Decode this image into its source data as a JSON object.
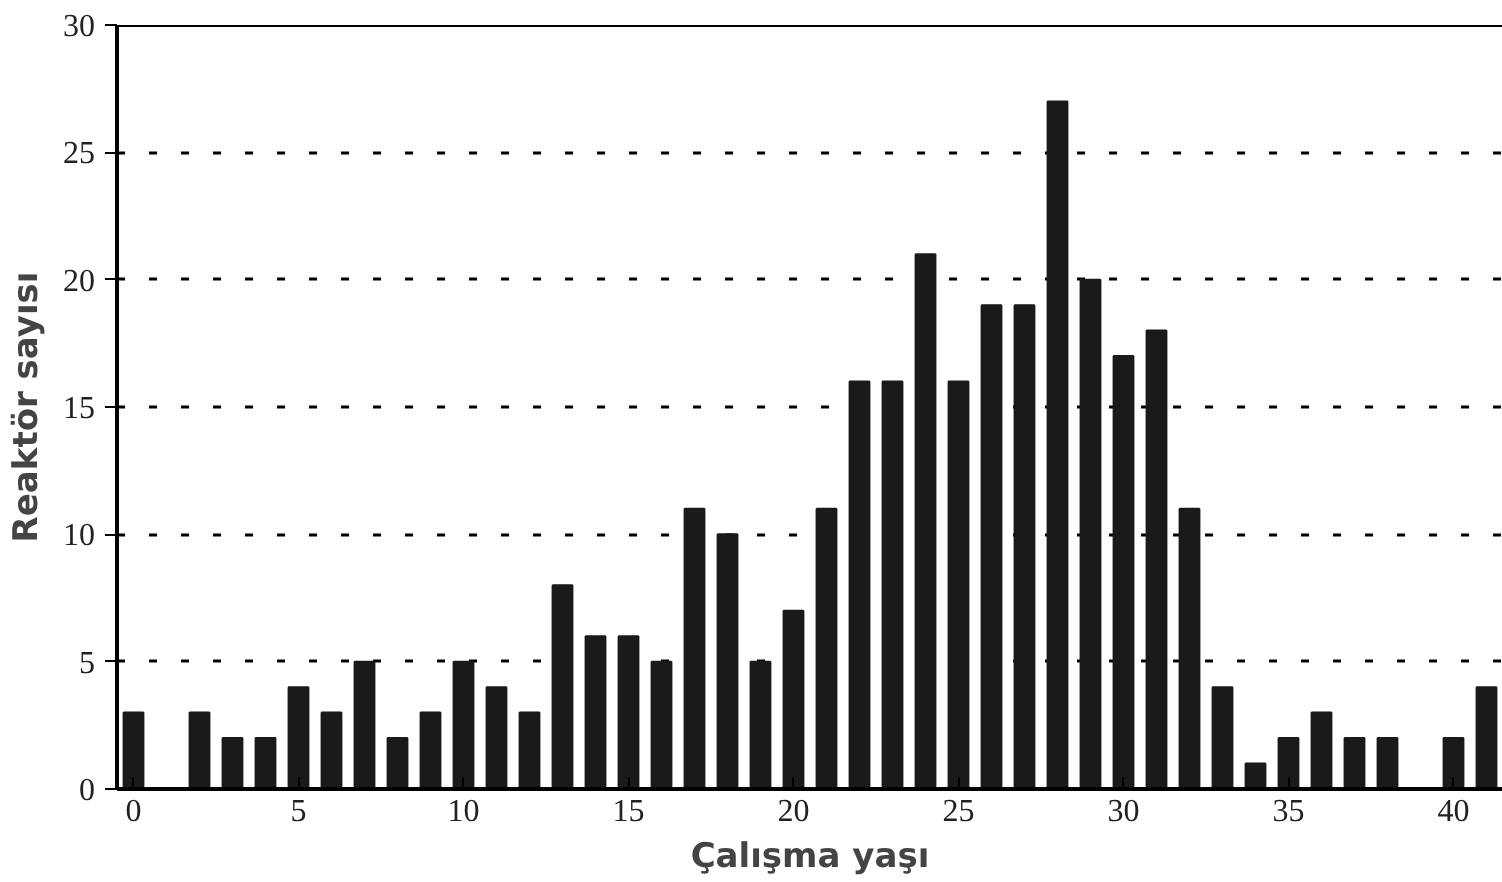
{
  "chart_data": {
    "type": "bar",
    "xlabel": "Çalışma yaşı",
    "ylabel": "Reaktör sayısı",
    "x": [
      0,
      1,
      2,
      3,
      4,
      5,
      6,
      7,
      8,
      9,
      10,
      11,
      12,
      13,
      14,
      15,
      16,
      17,
      18,
      19,
      20,
      21,
      22,
      23,
      24,
      25,
      26,
      27,
      28,
      29,
      30,
      31,
      32,
      33,
      34,
      35,
      36,
      37,
      38,
      39,
      40,
      41
    ],
    "values": [
      3,
      0,
      3,
      2,
      2,
      4,
      3,
      5,
      2,
      3,
      5,
      4,
      3,
      8,
      6,
      6,
      5,
      11,
      10,
      5,
      7,
      11,
      16,
      16,
      21,
      16,
      19,
      19,
      27,
      20,
      17,
      18,
      11,
      4,
      1,
      2,
      3,
      2,
      2,
      0,
      2,
      4
    ],
    "color": "#1a1a1a",
    "xlim": [
      -0.5,
      41.5
    ],
    "xticks": [
      0,
      5,
      10,
      15,
      20,
      25,
      30,
      35,
      40
    ],
    "ylim": [
      0,
      30
    ],
    "yticks": [
      0,
      5,
      10,
      15,
      20,
      25,
      30
    ],
    "grid": "y",
    "line_style": "dashed"
  }
}
